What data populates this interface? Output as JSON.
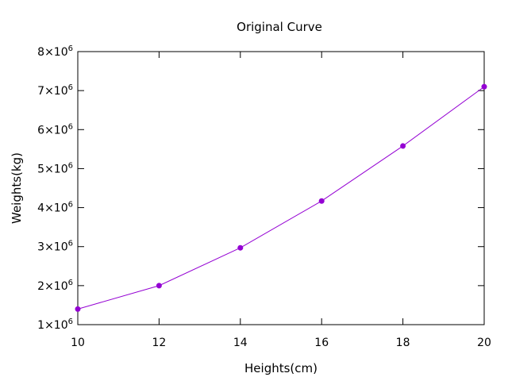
{
  "chart_data": {
    "type": "line",
    "title": "Original Curve",
    "xlabel": "Heights(cm)",
    "ylabel": "Weights(kg)",
    "xlim": [
      10,
      20
    ],
    "ylim": [
      1000000,
      8000000
    ],
    "x_ticks": [
      10,
      12,
      14,
      16,
      18,
      20
    ],
    "x_tick_labels": [
      "10",
      "12",
      "14",
      "16",
      "18",
      "20"
    ],
    "y_ticks": [
      1000000,
      2000000,
      3000000,
      4000000,
      5000000,
      6000000,
      7000000,
      8000000
    ],
    "y_tick_labels": [
      {
        "mantissa": "1×10",
        "exp": "6"
      },
      {
        "mantissa": "2×10",
        "exp": "6"
      },
      {
        "mantissa": "3×10",
        "exp": "6"
      },
      {
        "mantissa": "4×10",
        "exp": "6"
      },
      {
        "mantissa": "5×10",
        "exp": "6"
      },
      {
        "mantissa": "6×10",
        "exp": "6"
      },
      {
        "mantissa": "7×10",
        "exp": "6"
      },
      {
        "mantissa": "8×10",
        "exp": "6"
      }
    ],
    "grid": false,
    "legend": "none",
    "series": [
      {
        "color": "#9400d3",
        "x": [
          10,
          12,
          14,
          16,
          18,
          20
        ],
        "y": [
          1400000,
          2000000,
          2970000,
          4170000,
          5580000,
          7100000
        ]
      }
    ]
  }
}
